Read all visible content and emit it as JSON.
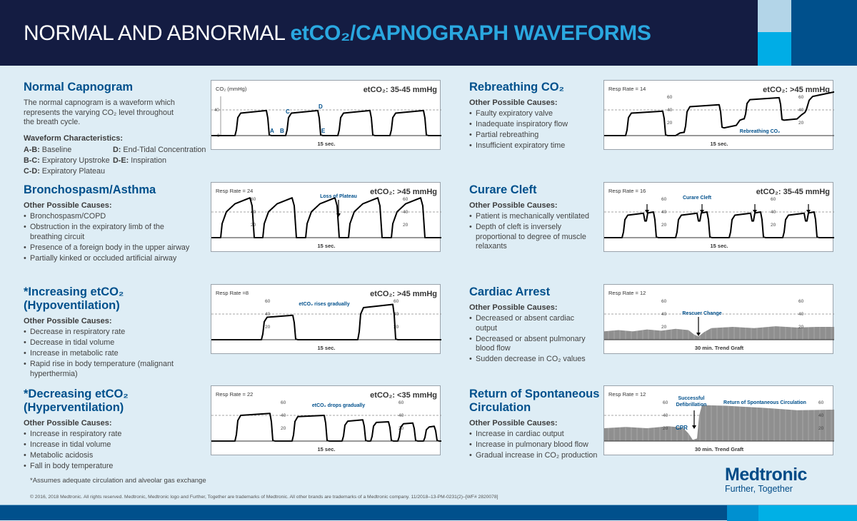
{
  "header": {
    "title_plain": "NORMAL AND ABNORMAL ",
    "title_highlight": "etCO₂/CAPNOGRAPH WAVEFORMS"
  },
  "colors": {
    "navy": "#141c42",
    "brand_blue": "#00508c",
    "cyan": "#00ade6",
    "light_blue": "#b3d5e8",
    "annotation_blue": "#00508c"
  },
  "panels": [
    {
      "title": "Normal Capnogram",
      "description": "The normal capnogram is a waveform which represents the varying CO₂ level throughout the breath cycle.",
      "characteristics_title": "Waveform Characteristics:",
      "characteristics": [
        {
          "key": "A-B:",
          "label": "Baseline"
        },
        {
          "key": "D:",
          "label": "End-Tidal Concentration"
        },
        {
          "key": "B-C:",
          "label": "Expiratory Upstroke"
        },
        {
          "key": "D-E:",
          "label": "Inspiration"
        },
        {
          "key": "C-D:",
          "label": "Expiratory Plateau"
        }
      ],
      "chart": {
        "left_label": "CO₂ (mmHg)",
        "right_label": "etCO₂: 35-45 mmHg",
        "bottom_label": "15 sec.",
        "axis_labels": [
          "40",
          "0"
        ],
        "annotations": [
          "A",
          "B",
          "C",
          "D",
          "E"
        ]
      }
    },
    {
      "title": "Bronchospasm/Asthma",
      "causes_title": "Other Possible Causes:",
      "causes": [
        "Bronchospasm/COPD",
        "Obstruction in the expiratory limb of the breathing circuit",
        "Presence of a foreign body in the upper airway",
        "Partially kinked or occluded artificial airway"
      ],
      "chart": {
        "left_label": "Resp Rate = 24",
        "right_label": "etCO₂: >45 mmHg",
        "bottom_label": "15 sec.",
        "axis_labels": [
          "60",
          "40",
          "20"
        ],
        "annotations": [
          "Loss of Plateau"
        ]
      }
    },
    {
      "title": "*Increasing etCO₂ (Hypoventilation)",
      "causes_title": "Other Possible Causes:",
      "causes": [
        "Decrease in respiratory rate",
        "Decrease in tidal volume",
        "Increase in metabolic rate",
        "Rapid rise in body temperature (malignant hyperthermia)"
      ],
      "chart": {
        "left_label": "Resp Rate =8",
        "right_label": "etCO₂: >45 mmHg",
        "bottom_label": "15 sec.",
        "axis_labels": [
          "60",
          "40",
          "20"
        ],
        "annotations": [
          "etCO₂ rises gradually"
        ]
      }
    },
    {
      "title": "*Decreasing etCO₂ (Hyperventilation)",
      "causes_title": "Other Possible Causes:",
      "causes": [
        "Increase in respiratory rate",
        "Increase in tidal volume",
        "Metabolic acidosis",
        "Fall in body temperature"
      ],
      "chart": {
        "left_label": "Resp Rate = 22",
        "right_label": "etCO₂: <35 mmHg",
        "bottom_label": "15 sec.",
        "axis_labels": [
          "60",
          "40",
          "20"
        ],
        "annotations": [
          "etCO₂ drops gradually"
        ]
      }
    },
    {
      "title": "Rebreathing CO₂",
      "causes_title": "Other Possible Causes:",
      "causes": [
        "Faulty expiratory valve",
        "Inadequate inspiratory flow",
        "Partial rebreathing",
        "Insufficient expiratory time"
      ],
      "chart": {
        "left_label": "Resp Rate = 14",
        "right_label": "etCO₂: >45 mmHg",
        "bottom_label": "15 sec.",
        "axis_labels": [
          "60",
          "40",
          "20"
        ],
        "annotations": [
          "Rebreathing CO₂"
        ]
      }
    },
    {
      "title": "Curare Cleft",
      "causes_title": "Other Possible Causes:",
      "causes": [
        "Patient is mechanically ventilated",
        "Depth of cleft is inversely proportional to degree of muscle relaxants"
      ],
      "chart": {
        "left_label": "Resp Rate = 16",
        "right_label": "etCO₂: 35-45 mmHg",
        "bottom_label": "15 sec.",
        "axis_labels": [
          "60",
          "40",
          "20"
        ],
        "annotations": [
          "Curare Cleft"
        ]
      }
    },
    {
      "title": "Cardiac Arrest",
      "causes_title": "Other Possible Causes:",
      "causes": [
        "Decreased or absent cardiac output",
        "Decreased or absent pulmonary blood flow",
        "Sudden decrease in CO₂ values"
      ],
      "chart": {
        "left_label": "Resp Rate = 12",
        "right_label": "",
        "bottom_label": "30 min. Trend Graft",
        "axis_labels": [
          "60",
          "40",
          "20"
        ],
        "annotations": [
          "Rescuer Change"
        ]
      }
    },
    {
      "title": "Return of Spontaneous Circulation",
      "causes_title": "Other Possible Causes:",
      "causes": [
        "Increase in cardiac output",
        "Increase in pulmonary blood flow",
        "Gradual increase in CO₂ production"
      ],
      "chart": {
        "left_label": "Resp Rate = 12",
        "right_label": "",
        "bottom_label": "30 min. Trend Graft",
        "axis_labels": [
          "60",
          "40",
          "20"
        ],
        "annotations": [
          "Successful",
          "Defibrillation",
          "Return of Spontaneous Circulation",
          "CPR"
        ]
      }
    }
  ],
  "footer": {
    "note": "*Assumes adequate circulation and alveolar gas exchange",
    "copyright": "© 2016, 2018 Medtronic. All rights reserved. Medtronic, Medtronic logo and Further, Together are trademarks of Medtronic. All other brands are trademarks of a Medtronic company.  11/2018–13-PM-0231(2)–[WF# 2820078]"
  },
  "logo": {
    "name": "Medtronic",
    "tagline": "Further, Together"
  }
}
